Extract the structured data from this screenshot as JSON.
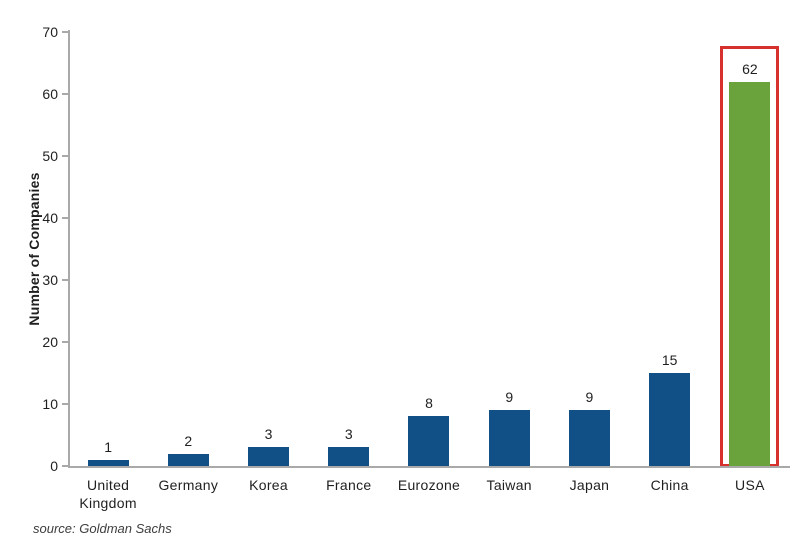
{
  "chart_data": {
    "type": "bar",
    "categories": [
      "United Kingdom",
      "Germany",
      "Korea",
      "France",
      "Eurozone",
      "Taiwan",
      "Japan",
      "China",
      "USA"
    ],
    "values": [
      1,
      2,
      3,
      3,
      8,
      9,
      9,
      15,
      62
    ],
    "title": "",
    "xlabel": "",
    "ylabel": "Number of Companies",
    "ylim": [
      0,
      70
    ],
    "ytick_step": 10,
    "grid": false,
    "legend_position": "none",
    "value_labels": true,
    "highlight": {
      "category": "USA",
      "index": 8
    }
  },
  "colors": {
    "bar": "#114F87",
    "highlight_bar": "#6AA23C",
    "highlight_box": "#D7312E",
    "axis": "#A9A9A9",
    "text": "#1F1F1F",
    "source_text": "#3D3D3D"
  },
  "source_note": "source: Goldman Sachs"
}
